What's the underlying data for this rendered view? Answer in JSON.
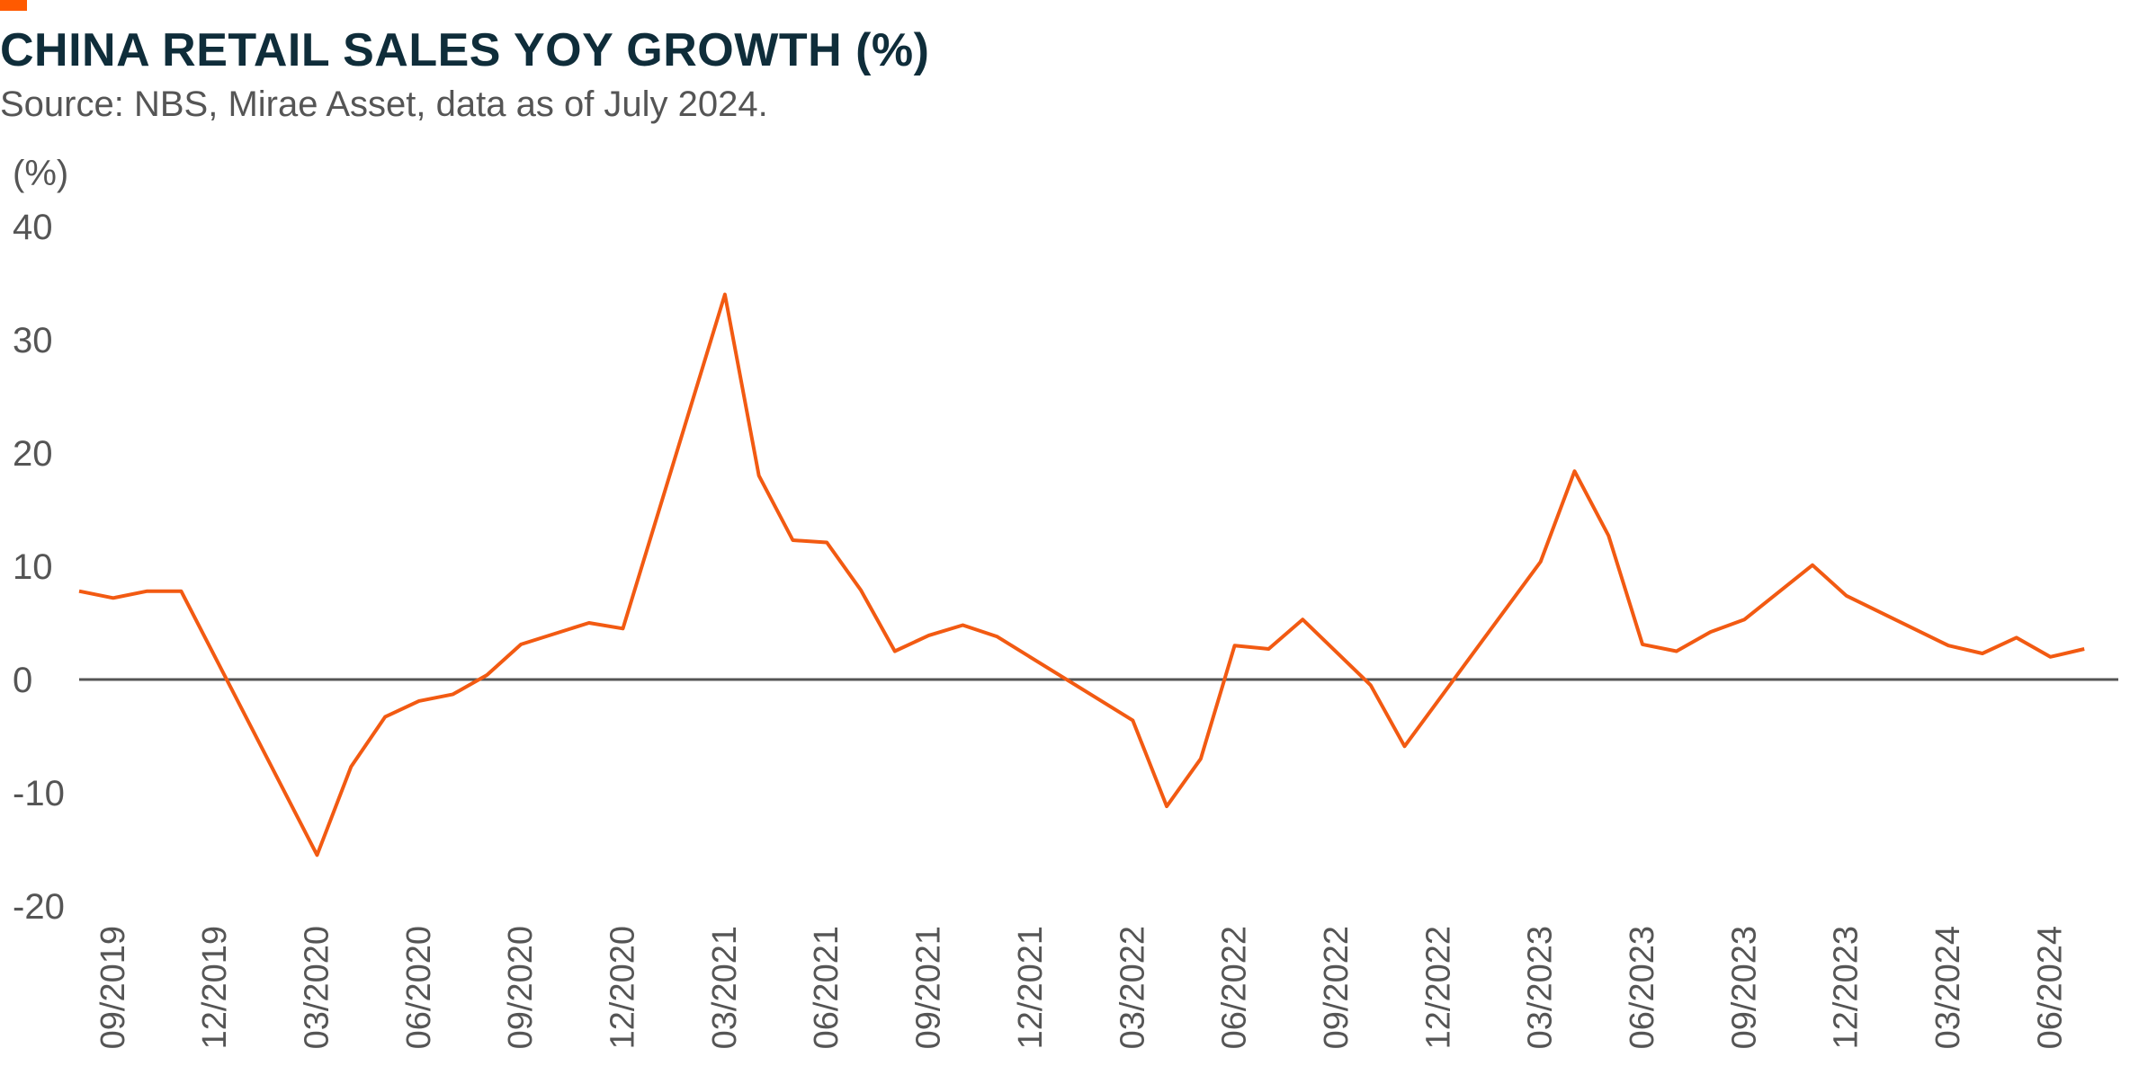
{
  "header": {
    "title": "CHINA RETAIL SALES YOY GROWTH (%)",
    "subtitle": "Source: NBS, Mirae Asset, data as of July 2024."
  },
  "colors": {
    "accent": "#ff5a00",
    "line": "#f25a12",
    "title": "#0f2d3a",
    "axis_text": "#555555",
    "zero_line": "#555555"
  },
  "chart_data": {
    "type": "line",
    "title": "CHINA RETAIL SALES YOY GROWTH (%)",
    "subtitle": "Source: NBS, Mirae Asset, data as of July 2024.",
    "ylabel": "(%)",
    "xlabel": "",
    "ylim": [
      -20,
      40
    ],
    "yticks": [
      "40",
      "30",
      "20",
      "10",
      "0",
      "-10",
      "-20"
    ],
    "ytick_values": [
      40,
      30,
      20,
      10,
      0,
      -10,
      -20
    ],
    "grid": false,
    "zero_line": true,
    "xtick_labels": [
      "09/2019",
      "12/2019",
      "03/2020",
      "06/2020",
      "09/2020",
      "12/2020",
      "03/2021",
      "06/2021",
      "09/2021",
      "12/2021",
      "03/2022",
      "06/2022",
      "09/2022",
      "12/2022",
      "03/2023",
      "06/2023",
      "09/2023",
      "12/2023",
      "03/2024",
      "06/2024"
    ],
    "xtick_positions": [
      "2019-09",
      "2019-12",
      "2020-03",
      "2020-06",
      "2020-09",
      "2020-12",
      "2021-03",
      "2021-06",
      "2021-09",
      "2021-12",
      "2022-03",
      "2022-06",
      "2022-09",
      "2022-12",
      "2023-03",
      "2023-06",
      "2023-09",
      "2023-12",
      "2024-03",
      "2024-06"
    ],
    "x_start": "2019-08",
    "x_end": "2024-08",
    "series": [
      {
        "points": [
          {
            "x": "2019-08",
            "y": 7.8
          },
          {
            "x": "2019-09",
            "y": 7.2
          },
          {
            "x": "2019-10",
            "y": 7.8
          },
          {
            "x": "2019-11",
            "y": 7.8
          },
          {
            "x": "2020-03",
            "y": -15.5
          },
          {
            "x": "2020-04",
            "y": -7.7
          },
          {
            "x": "2020-05",
            "y": -3.3
          },
          {
            "x": "2020-06",
            "y": -1.9
          },
          {
            "x": "2020-07",
            "y": -1.3
          },
          {
            "x": "2020-08",
            "y": 0.4
          },
          {
            "x": "2020-09",
            "y": 3.1
          },
          {
            "x": "2020-11",
            "y": 5.0
          },
          {
            "x": "2020-12",
            "y": 4.5
          },
          {
            "x": "2021-03",
            "y": 34.0
          },
          {
            "x": "2021-04",
            "y": 18.0
          },
          {
            "x": "2021-05",
            "y": 12.3
          },
          {
            "x": "2021-06",
            "y": 12.1
          },
          {
            "x": "2021-07",
            "y": 7.9
          },
          {
            "x": "2021-08",
            "y": 2.5
          },
          {
            "x": "2021-09",
            "y": 3.9
          },
          {
            "x": "2021-10",
            "y": 4.8
          },
          {
            "x": "2021-11",
            "y": 3.8
          },
          {
            "x": "2022-03",
            "y": -3.6
          },
          {
            "x": "2022-04",
            "y": -11.2
          },
          {
            "x": "2022-05",
            "y": -7.0
          },
          {
            "x": "2022-06",
            "y": 3.0
          },
          {
            "x": "2022-07",
            "y": 2.7
          },
          {
            "x": "2022-08",
            "y": 5.3
          },
          {
            "x": "2022-10",
            "y": -0.5
          },
          {
            "x": "2022-11",
            "y": -5.9
          },
          {
            "x": "2023-03",
            "y": 10.4
          },
          {
            "x": "2023-04",
            "y": 18.4
          },
          {
            "x": "2023-05",
            "y": 12.7
          },
          {
            "x": "2023-06",
            "y": 3.1
          },
          {
            "x": "2023-07",
            "y": 2.5
          },
          {
            "x": "2023-08",
            "y": 4.2
          },
          {
            "x": "2023-09",
            "y": 5.3
          },
          {
            "x": "2023-11",
            "y": 10.1
          },
          {
            "x": "2023-12",
            "y": 7.4
          },
          {
            "x": "2024-03",
            "y": 3.0
          },
          {
            "x": "2024-04",
            "y": 2.3
          },
          {
            "x": "2024-05",
            "y": 3.7
          },
          {
            "x": "2024-06",
            "y": 2.0
          },
          {
            "x": "2024-07",
            "y": 2.7
          }
        ]
      }
    ]
  }
}
